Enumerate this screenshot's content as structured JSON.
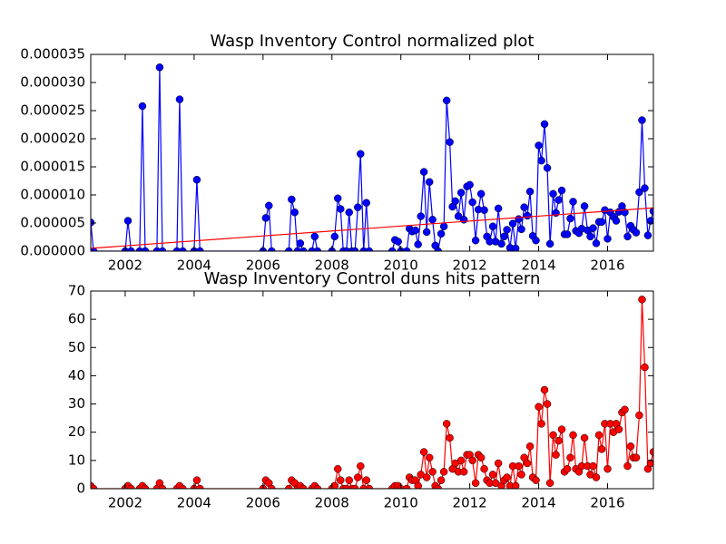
{
  "chart_data": [
    {
      "type": "line",
      "title": "Wasp Inventory Control normalized plot",
      "x": [
        2001.0,
        2001.08,
        2002.0,
        2002.08,
        2002.17,
        2002.42,
        2002.5,
        2002.58,
        2002.92,
        2003.0,
        2003.08,
        2003.5,
        2003.58,
        2003.67,
        2004.0,
        2004.08,
        2004.17,
        2006.0,
        2006.08,
        2006.17,
        2006.25,
        2006.75,
        2006.83,
        2006.92,
        2007.0,
        2007.08,
        2007.17,
        2007.42,
        2007.5,
        2007.58,
        2008.0,
        2008.08,
        2008.17,
        2008.25,
        2008.33,
        2008.42,
        2008.5,
        2008.58,
        2008.67,
        2008.75,
        2008.83,
        2008.92,
        2009.0,
        2009.08,
        2009.75,
        2009.83,
        2009.92,
        2010.0,
        2010.17,
        2010.25,
        2010.33,
        2010.42,
        2010.5,
        2010.58,
        2010.67,
        2010.75,
        2010.83,
        2010.92,
        2011.0,
        2011.08,
        2011.17,
        2011.25,
        2011.33,
        2011.42,
        2011.5,
        2011.58,
        2011.67,
        2011.75,
        2011.83,
        2011.92,
        2012.0,
        2012.08,
        2012.17,
        2012.25,
        2012.33,
        2012.42,
        2012.5,
        2012.58,
        2012.67,
        2012.75,
        2012.83,
        2012.92,
        2013.0,
        2013.08,
        2013.17,
        2013.25,
        2013.33,
        2013.42,
        2013.5,
        2013.58,
        2013.67,
        2013.75,
        2013.83,
        2013.92,
        2014.0,
        2014.08,
        2014.17,
        2014.25,
        2014.33,
        2014.42,
        2014.5,
        2014.58,
        2014.67,
        2014.75,
        2014.83,
        2014.92,
        2015.0,
        2015.08,
        2015.17,
        2015.25,
        2015.33,
        2015.42,
        2015.5,
        2015.58,
        2015.67,
        2015.75,
        2015.83,
        2015.92,
        2016.0,
        2016.08,
        2016.17,
        2016.25,
        2016.33,
        2016.42,
        2016.5,
        2016.58,
        2016.67,
        2016.75,
        2016.83,
        2016.92,
        2017.0,
        2017.08,
        2017.17,
        2017.25,
        2017.33
      ],
      "series": [
        {
          "color": "#0000ff",
          "marker": true,
          "values": [
            5.1e-06,
            0,
            0,
            5.4e-06,
            0,
            0,
            2.58e-05,
            0,
            0,
            3.27e-05,
            0,
            0,
            2.7e-05,
            0,
            0,
            1.27e-05,
            0,
            0,
            5.9e-06,
            8.1e-06,
            0,
            0,
            9.2e-06,
            6.9e-06,
            0,
            1.4e-06,
            0,
            0,
            2.6e-06,
            0,
            0,
            2.6e-06,
            9.4e-06,
            7.5e-06,
            0,
            0,
            6.9e-06,
            0,
            0,
            7.8e-06,
            1.73e-05,
            0,
            8.6e-06,
            0,
            0,
            2e-06,
            1.7e-06,
            0,
            0,
            4e-06,
            3.5e-06,
            3.7e-06,
            1.2e-06,
            6.2e-06,
            1.41e-05,
            3.4e-06,
            1.23e-05,
            5.6e-06,
            1e-06,
            0,
            3.1e-06,
            4.4e-06,
            2.68e-05,
            1.94e-05,
            7.9e-06,
            8.9e-06,
            6.2e-06,
            1.04e-05,
            5.6e-06,
            1.15e-05,
            1.18e-05,
            8.7e-06,
            1.9e-06,
            7.4e-06,
            1.02e-05,
            7.3e-06,
            2.6e-06,
            1.7e-06,
            4.4e-06,
            1.7e-06,
            7.6e-06,
            1.3e-06,
            2.6e-06,
            3.8e-06,
            6e-07,
            4.9e-06,
            5e-07,
            5.7e-06,
            3.9e-06,
            7.8e-06,
            6.3e-06,
            1.06e-05,
            2.7e-06,
            1.9e-06,
            1.88e-05,
            1.61e-05,
            2.26e-05,
            1.48e-05,
            1.3e-06,
            1.02e-05,
            6.8e-06,
            9.1e-06,
            1.08e-05,
            3e-06,
            3e-06,
            5.8e-06,
            8.8e-06,
            3.6e-06,
            3.2e-06,
            4e-06,
            8e-06,
            3.7e-06,
            2.6e-06,
            4.1e-06,
            1.4e-06,
            5.2e-06,
            5.2e-06,
            7.3e-06,
            2.2e-06,
            6.9e-06,
            6.1e-06,
            5.4e-06,
            7e-06,
            8e-06,
            6.9e-06,
            2.6e-06,
            4.5e-06,
            3.8e-06,
            3.3e-06,
            1.05e-05,
            2.33e-05,
            1.12e-05,
            2.8e-06,
            5.4e-06,
            7.1e-06
          ]
        },
        {
          "color": "#ff0000",
          "marker": false,
          "x": [
            2001.0,
            2017.33
          ],
          "values": [
            5e-07,
            7.7e-06
          ]
        }
      ],
      "xlim": [
        2001.0,
        2017.33
      ],
      "xticks": [
        2002,
        2004,
        2006,
        2008,
        2010,
        2012,
        2014,
        2016
      ],
      "ylim": [
        0,
        3.5e-05
      ],
      "yticks": [
        {
          "value": 0,
          "label": "0.000000"
        },
        {
          "value": 5e-06,
          "label": "0.000005"
        },
        {
          "value": 1e-05,
          "label": "0.000010"
        },
        {
          "value": 1.5e-05,
          "label": "0.000015"
        },
        {
          "value": 2e-05,
          "label": "0.000020"
        },
        {
          "value": 2.5e-05,
          "label": "0.000025"
        },
        {
          "value": 3e-05,
          "label": "0.000030"
        },
        {
          "value": 3.5e-05,
          "label": "0.000035"
        }
      ]
    },
    {
      "type": "line",
      "title": "Wasp Inventory Control duns hits pattern",
      "x": [
        2001.0,
        2001.08,
        2002.0,
        2002.08,
        2002.17,
        2002.42,
        2002.5,
        2002.58,
        2002.92,
        2003.0,
        2003.08,
        2003.5,
        2003.58,
        2003.67,
        2004.0,
        2004.08,
        2004.17,
        2006.0,
        2006.08,
        2006.17,
        2006.25,
        2006.75,
        2006.83,
        2006.92,
        2007.0,
        2007.08,
        2007.17,
        2007.42,
        2007.5,
        2007.58,
        2008.0,
        2008.08,
        2008.17,
        2008.25,
        2008.33,
        2008.42,
        2008.5,
        2008.58,
        2008.67,
        2008.75,
        2008.83,
        2008.92,
        2009.0,
        2009.08,
        2009.75,
        2009.83,
        2009.92,
        2010.0,
        2010.17,
        2010.25,
        2010.33,
        2010.42,
        2010.5,
        2010.58,
        2010.67,
        2010.75,
        2010.83,
        2010.92,
        2011.0,
        2011.08,
        2011.17,
        2011.25,
        2011.33,
        2011.42,
        2011.5,
        2011.58,
        2011.67,
        2011.75,
        2011.83,
        2011.92,
        2012.0,
        2012.08,
        2012.17,
        2012.25,
        2012.33,
        2012.42,
        2012.5,
        2012.58,
        2012.67,
        2012.75,
        2012.83,
        2012.92,
        2013.0,
        2013.08,
        2013.17,
        2013.25,
        2013.33,
        2013.42,
        2013.5,
        2013.58,
        2013.67,
        2013.75,
        2013.83,
        2013.92,
        2014.0,
        2014.08,
        2014.17,
        2014.25,
        2014.33,
        2014.42,
        2014.5,
        2014.58,
        2014.67,
        2014.75,
        2014.83,
        2014.92,
        2015.0,
        2015.08,
        2015.17,
        2015.25,
        2015.33,
        2015.42,
        2015.5,
        2015.58,
        2015.67,
        2015.75,
        2015.83,
        2015.92,
        2016.0,
        2016.08,
        2016.17,
        2016.25,
        2016.33,
        2016.42,
        2016.5,
        2016.58,
        2016.67,
        2016.75,
        2016.83,
        2016.92,
        2017.0,
        2017.08,
        2017.17,
        2017.25,
        2017.33
      ],
      "series": [
        {
          "color": "#ff0000",
          "marker": true,
          "values": [
            1,
            0,
            0,
            1,
            0,
            0,
            1,
            0,
            0,
            2,
            0,
            0,
            1,
            0,
            0,
            3,
            0,
            0,
            3,
            2,
            0,
            0,
            3,
            2,
            0,
            1,
            0,
            0,
            1,
            0,
            0,
            1,
            7,
            3,
            0,
            0,
            3,
            0,
            0,
            4,
            8,
            0,
            3,
            0,
            0,
            1,
            1,
            0,
            0,
            4,
            3,
            3,
            1,
            5,
            13,
            4,
            11,
            6,
            1,
            0,
            3,
            6,
            23,
            18,
            7,
            9,
            6,
            10,
            6,
            12,
            12,
            10,
            2,
            12,
            11,
            7,
            3,
            2,
            5,
            2,
            9,
            1,
            3,
            4,
            1,
            8,
            1,
            8,
            5,
            11,
            9,
            15,
            4,
            3,
            29,
            23,
            35,
            30,
            2,
            19,
            12,
            17,
            21,
            6,
            7,
            11,
            19,
            7,
            6,
            8,
            18,
            8,
            5,
            8,
            4,
            19,
            14,
            23,
            7,
            23,
            20,
            23,
            21,
            27,
            28,
            8,
            15,
            11,
            11,
            26,
            67,
            43,
            7,
            9,
            13
          ]
        }
      ],
      "xlim": [
        2001.0,
        2017.33
      ],
      "xticks": [
        2002,
        2004,
        2006,
        2008,
        2010,
        2012,
        2014,
        2016
      ],
      "ylim": [
        0,
        70
      ],
      "yticks": [
        0,
        10,
        20,
        30,
        40,
        50,
        60,
        70
      ]
    }
  ]
}
